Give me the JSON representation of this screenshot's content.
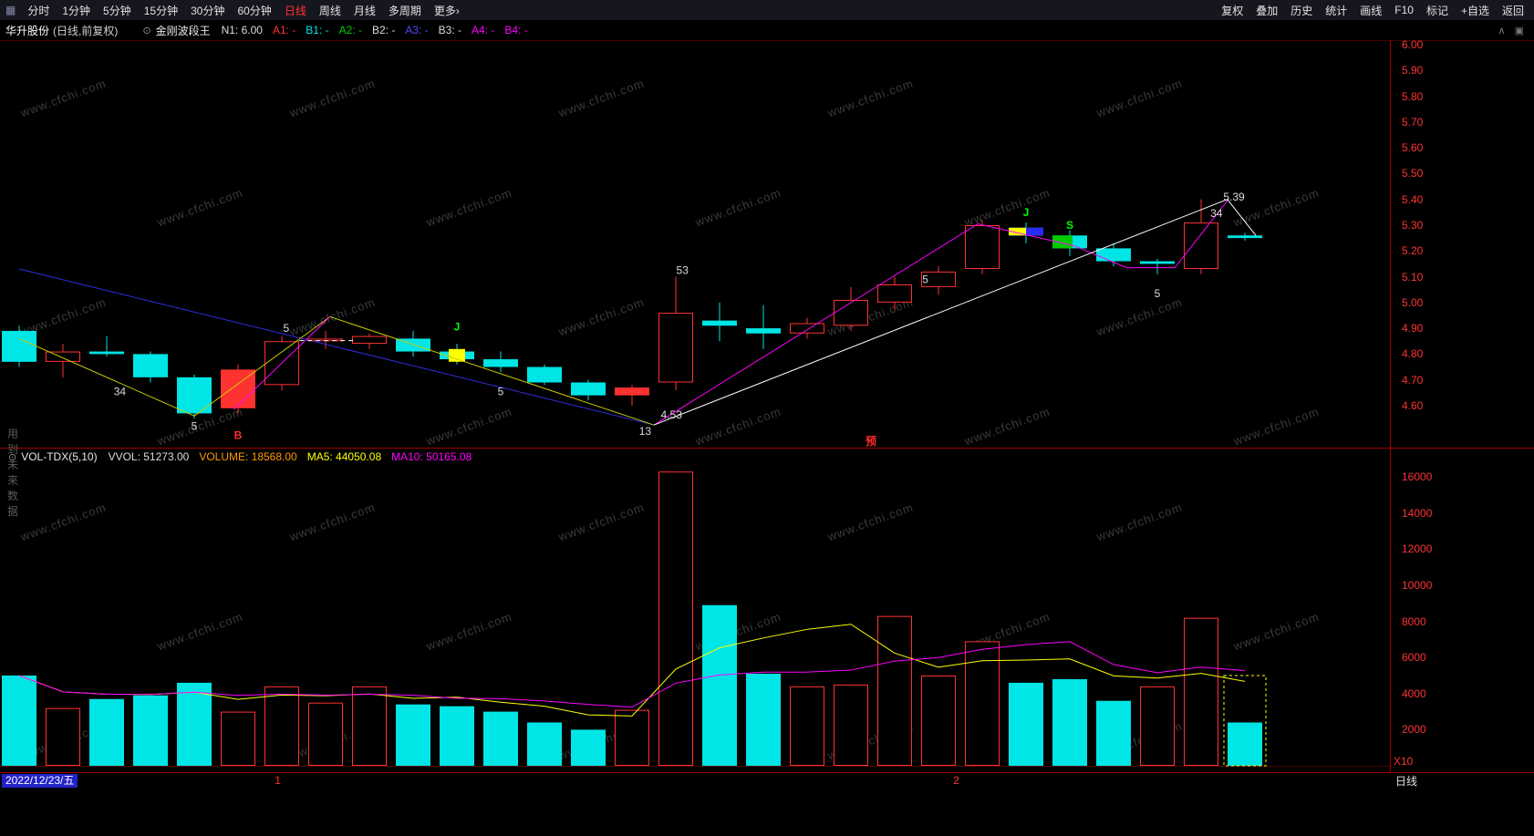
{
  "menubar": {
    "items": [
      "分时",
      "1分钟",
      "5分钟",
      "15分钟",
      "30分钟",
      "60分钟",
      "日线",
      "周线",
      "月线",
      "多周期",
      "更多›"
    ],
    "active_index": 6,
    "right_items": [
      "复权",
      "叠加",
      "历史",
      "统计",
      "画线",
      "F10",
      "标记",
      "+自选",
      "返回"
    ]
  },
  "header": {
    "title": "华升股份",
    "subtitle": "(日线,前复权)",
    "indicator": "金刚波段王",
    "params": [
      {
        "label": "N1:",
        "value": "6.00",
        "color": "#dcdcdc"
      },
      {
        "label": "A1:",
        "value": "-",
        "color": "#ff3232"
      },
      {
        "label": "B1:",
        "value": "-",
        "color": "#00e5e5"
      },
      {
        "label": "A2:",
        "value": "-",
        "color": "#00d200"
      },
      {
        "label": "B2:",
        "value": "-",
        "color": "#dcdcdc"
      },
      {
        "label": "A3:",
        "value": "-",
        "color": "#4d4dff"
      },
      {
        "label": "B3:",
        "value": "-",
        "color": "#dcdcdc"
      },
      {
        "label": "A4:",
        "value": "-",
        "color": "#ff00ff"
      },
      {
        "label": "B4:",
        "value": "-",
        "color": "#ff00ff"
      }
    ]
  },
  "vol_header": {
    "name": "VOL-TDX(5,10)",
    "items": [
      {
        "label": "VVOL:",
        "value": "51273.00",
        "color": "#dcdcdc"
      },
      {
        "label": "VOLUME:",
        "value": "18568.00",
        "color": "#ff9900"
      },
      {
        "label": "MA5:",
        "value": "44050.08",
        "color": "#ffff00"
      },
      {
        "label": "MA10:",
        "value": "50165.08",
        "color": "#ff00ff"
      }
    ]
  },
  "note_left": "用到未来数据",
  "badge": "预",
  "axis_unit": "X10",
  "watermark": {
    "text": "www.cfchi.com"
  },
  "status_bar": {
    "date": "2022/12/23/五",
    "markers": [
      {
        "text": "1",
        "i": 5.9
      },
      {
        "text": "2",
        "i": 21.4
      }
    ],
    "period_label": "日线"
  },
  "chart_data": [
    {
      "type": "candlestick",
      "title": "华升股份 日线 前复权",
      "colors": {
        "up": "#ff3232",
        "down": "#00e5e5"
      },
      "price_axis_labels": [
        "6.00",
        "5.90",
        "5.80",
        "5.70",
        "5.60",
        "5.50",
        "5.40",
        "5.30",
        "5.20",
        "5.10",
        "5.00",
        "4.90",
        "4.80",
        "4.70",
        "4.60"
      ],
      "ylim": [
        4.44,
        6.01
      ],
      "candles": [
        [
          4.89,
          4.91,
          4.75,
          4.77,
          "cyan"
        ],
        [
          4.77,
          4.84,
          4.71,
          4.81,
          "red"
        ],
        [
          4.81,
          4.87,
          4.79,
          4.8,
          "cyan"
        ],
        [
          4.8,
          4.81,
          4.69,
          4.71,
          "cyan"
        ],
        [
          4.71,
          4.72,
          4.55,
          4.57,
          "cyan"
        ],
        [
          4.59,
          4.76,
          4.57,
          4.74,
          "red_solid"
        ],
        [
          4.68,
          4.87,
          4.66,
          4.85,
          "red"
        ],
        [
          4.85,
          4.89,
          4.82,
          4.86,
          "red"
        ],
        [
          4.84,
          4.88,
          4.82,
          4.87,
          "red"
        ],
        [
          4.86,
          4.89,
          4.79,
          4.81,
          "cyan"
        ],
        [
          4.81,
          4.84,
          4.76,
          4.78,
          "cyan",
          "yellow"
        ],
        [
          4.78,
          4.81,
          4.73,
          4.75,
          "cyan"
        ],
        [
          4.75,
          4.76,
          4.68,
          4.69,
          "cyan"
        ],
        [
          4.69,
          4.7,
          4.62,
          4.64,
          "cyan"
        ],
        [
          4.64,
          4.68,
          4.6,
          4.67,
          "red_solid"
        ],
        [
          4.69,
          5.1,
          4.66,
          4.96,
          "red"
        ],
        [
          4.93,
          5.0,
          4.85,
          4.91,
          "cyan"
        ],
        [
          4.9,
          4.99,
          4.82,
          4.88,
          "cyan"
        ],
        [
          4.88,
          4.94,
          4.86,
          4.92,
          "red"
        ],
        [
          4.91,
          5.06,
          4.89,
          5.01,
          "red"
        ],
        [
          5.0,
          5.1,
          4.97,
          5.07,
          "red"
        ],
        [
          5.06,
          5.14,
          5.03,
          5.12,
          "red"
        ],
        [
          5.13,
          5.32,
          5.11,
          5.3,
          "red"
        ],
        [
          5.29,
          5.31,
          5.23,
          5.26,
          "cyan",
          "yellow_blue"
        ],
        [
          5.26,
          5.28,
          5.18,
          5.21,
          "cyan",
          "green"
        ],
        [
          5.21,
          5.23,
          5.14,
          5.16,
          "cyan"
        ],
        [
          5.16,
          5.17,
          5.11,
          5.15,
          "cyan"
        ],
        [
          5.13,
          5.4,
          5.11,
          5.31,
          "red"
        ],
        [
          5.26,
          5.27,
          5.24,
          5.25,
          "cyan"
        ]
      ],
      "lines": [
        {
          "color": "#2e2ee0",
          "w": 1,
          "points": [
            [
              0,
              5.13
            ],
            [
              14.5,
              4.525
            ]
          ]
        },
        {
          "color": "#cccc00",
          "w": 1,
          "points": [
            [
              0,
              4.86
            ],
            [
              4,
              4.56
            ],
            [
              7.1,
              4.945
            ],
            [
              14.5,
              4.525
            ]
          ]
        },
        {
          "color": "#ff00ff",
          "w": 1,
          "points": [
            [
              4.9,
              4.585
            ],
            [
              7.1,
              4.945
            ]
          ]
        },
        {
          "color": "#ffffff",
          "w": 1,
          "dash": "5 4",
          "points": [
            [
              6.4,
              4.852
            ],
            [
              7.7,
              4.852
            ]
          ]
        },
        {
          "color": "#ff00ff",
          "w": 1,
          "points": [
            [
              14.5,
              4.525
            ],
            [
              21.9,
              5.305
            ],
            [
              24.1,
              5.22
            ],
            [
              25.3,
              5.135
            ],
            [
              26.4,
              5.135
            ],
            [
              27.6,
              5.395
            ]
          ]
        },
        {
          "color": "#ffffff",
          "w": 1,
          "points": [
            [
              14.5,
              4.525
            ],
            [
              27.6,
              5.4
            ],
            [
              28.25,
              5.26
            ]
          ]
        }
      ],
      "labels": [
        {
          "t": "34",
          "i": 2.3,
          "p": 4.655,
          "c": "#dcdcdc"
        },
        {
          "t": "5",
          "i": 4,
          "p": 4.52,
          "c": "#dcdcdc"
        },
        {
          "t": "B",
          "i": 5,
          "p": 4.485,
          "c": "#ff3232",
          "bold": true
        },
        {
          "t": "5",
          "i": 6.1,
          "p": 4.9,
          "c": "#dcdcdc"
        },
        {
          "t": "J",
          "i": 10,
          "p": 4.905,
          "c": "#00ff00",
          "bold": true
        },
        {
          "t": "5",
          "i": 11,
          "p": 4.655,
          "c": "#dcdcdc"
        },
        {
          "t": "13",
          "i": 14.3,
          "p": 4.5,
          "c": "#dcdcdc"
        },
        {
          "t": "4.53",
          "i": 14.9,
          "p": 4.565,
          "c": "#dcdcdc"
        },
        {
          "t": "53",
          "i": 15.15,
          "p": 5.125,
          "c": "#dcdcdc"
        },
        {
          "t": "5",
          "i": 20.7,
          "p": 5.09,
          "c": "#dcdcdc"
        },
        {
          "t": "J",
          "i": 23,
          "p": 5.35,
          "c": "#00ff00",
          "bold": true
        },
        {
          "t": "S",
          "i": 24,
          "p": 5.3,
          "c": "#00ff00",
          "bold": true
        },
        {
          "t": "5",
          "i": 26,
          "p": 5.035,
          "c": "#dcdcdc"
        },
        {
          "t": "34",
          "i": 27.35,
          "p": 5.345,
          "c": "#dcdcdc"
        },
        {
          "t": "5.39",
          "i": 27.75,
          "p": 5.41,
          "c": "#dcdcdc"
        }
      ]
    },
    {
      "type": "bar",
      "title": "VOL-TDX(5,10)",
      "colors": {
        "up": "#ff3232",
        "down": "#00e5e5"
      },
      "y_axis_labels": [
        16000,
        14000,
        12000,
        10000,
        8000,
        6000,
        4000,
        2000
      ],
      "ylim": [
        0,
        17000
      ],
      "values": [
        5000,
        3200,
        3700,
        3900,
        4600,
        3000,
        4400,
        3500,
        4400,
        3400,
        3300,
        3000,
        2400,
        2000,
        3100,
        16300,
        8900,
        5100,
        4400,
        4500,
        8300,
        5000,
        6900,
        4600,
        4800,
        3600,
        4400,
        8200,
        2400
      ],
      "paints": [
        "c",
        "r",
        "c",
        "c",
        "c",
        "r",
        "r",
        "r",
        "r",
        "c",
        "c",
        "c",
        "c",
        "c",
        "r",
        "r",
        "c",
        "c",
        "r",
        "r",
        "r",
        "r",
        "r",
        "c",
        "c",
        "c",
        "r",
        "r",
        "c"
      ],
      "ma_periods": [
        5,
        10
      ],
      "ma_colors": {
        "ma5": "#ffff00",
        "ma10": "#ff00ff"
      },
      "dashed_box": {
        "i": 28,
        "v": 5000,
        "color": "#ffff00"
      }
    }
  ]
}
